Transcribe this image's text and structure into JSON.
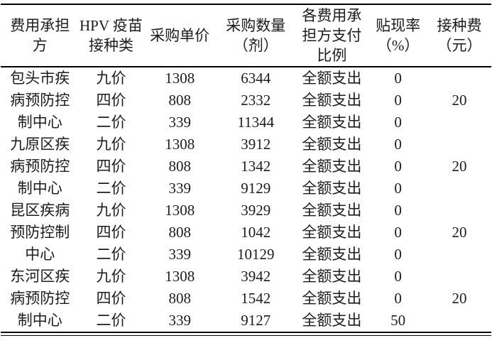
{
  "colors": {
    "background": "#ffffff",
    "text": "#1c1c1c",
    "rule": "#000000"
  },
  "table": {
    "columns": [
      {
        "key": "payer",
        "label": "费用承担\n方"
      },
      {
        "key": "vaccine_type",
        "label": "HPV 疫苗\n接种类"
      },
      {
        "key": "unit_price",
        "label": "采购单价"
      },
      {
        "key": "quantity_doses",
        "label": "采购数量\n（剂）"
      },
      {
        "key": "payment_ratio",
        "label": "各费用承\n担方支付\n比例"
      },
      {
        "key": "discount_rate",
        "label": "贴现率\n（%）"
      },
      {
        "key": "vaccination_fee",
        "label": "接种费\n（元）"
      }
    ],
    "rows": [
      [
        "包头市疾",
        "九价",
        "1308",
        "6344",
        "全额支出",
        "0",
        ""
      ],
      [
        "病预防控",
        "四价",
        "808",
        "2332",
        "全额支出",
        "0",
        "20"
      ],
      [
        "制中心",
        "二价",
        "339",
        "11344",
        "全额支出",
        "0",
        ""
      ],
      [
        "九原区疾",
        "九价",
        "1308",
        "3912",
        "全额支出",
        "0",
        ""
      ],
      [
        "病预防控",
        "四价",
        "808",
        "1342",
        "全额支出",
        "0",
        "20"
      ],
      [
        "制中心",
        "二价",
        "339",
        "9129",
        "全额支出",
        "0",
        ""
      ],
      [
        "昆区疾病",
        "九价",
        "1308",
        "3929",
        "全额支出",
        "0",
        ""
      ],
      [
        "预防控制",
        "四价",
        "808",
        "1042",
        "全额支出",
        "0",
        "20"
      ],
      [
        "中心",
        "二价",
        "339",
        "10129",
        "全额支出",
        "0",
        ""
      ],
      [
        "东河区疾",
        "九价",
        "1308",
        "3942",
        "全额支出",
        "0",
        ""
      ],
      [
        "病预防控",
        "四价",
        "808",
        "1542",
        "全额支出",
        "0",
        "20"
      ],
      [
        "制中心",
        "二价",
        "339",
        "9127",
        "全额支出",
        "50",
        ""
      ]
    ]
  }
}
